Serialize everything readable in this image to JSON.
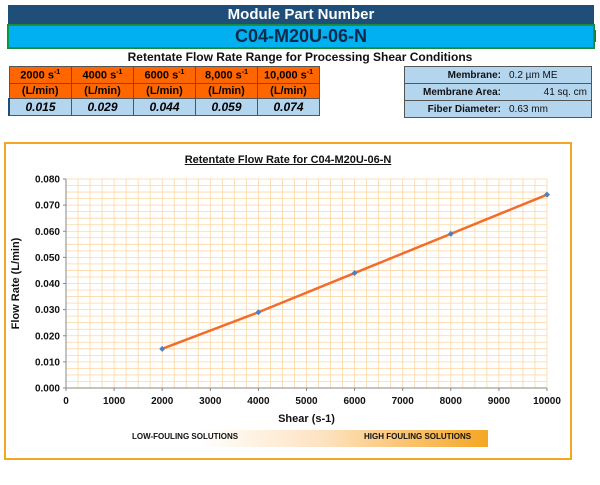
{
  "header": {
    "title": "Module Part Number",
    "part_number": "C04-M20U-06-N"
  },
  "subtitle": "Retentate Flow Rate Range for Processing Shear Conditions",
  "rates": {
    "shears": [
      {
        "value": "2000 s",
        "exp": "-1"
      },
      {
        "value": "4000 s",
        "exp": "-1"
      },
      {
        "value": "6000 s",
        "exp": "-1"
      },
      {
        "value": "8,000 s",
        "exp": "-1"
      },
      {
        "value": "10,000 s",
        "exp": "-1"
      }
    ],
    "unit": "(L/min)",
    "flows": [
      "0.015",
      "0.029",
      "0.044",
      "0.059",
      "0.074"
    ]
  },
  "specs": [
    {
      "label": "Membrane:",
      "value": "0.2 µm ME"
    },
    {
      "label": "Membrane Area:",
      "value": "41 sq. cm"
    },
    {
      "label": "Fiber Diameter:",
      "value": "0.63 mm"
    }
  ],
  "chart_data": {
    "type": "line",
    "title": "Retentate Flow Rate for C04-M20U-06-N",
    "xlabel": "Shear (s-1)",
    "ylabel": "Flow Rate (L/min)",
    "x": [
      2000,
      4000,
      6000,
      8000,
      10000
    ],
    "series": [
      {
        "values": [
          0.015,
          0.029,
          0.044,
          0.059,
          0.074
        ]
      }
    ],
    "xlim": [
      0,
      10000
    ],
    "ylim": [
      0,
      0.08
    ],
    "xticks": [
      "0",
      "1000",
      "2000",
      "3000",
      "4000",
      "5000",
      "6000",
      "7000",
      "8000",
      "9000",
      "10000"
    ],
    "yticks": [
      "0.000",
      "0.010",
      "0.020",
      "0.030",
      "0.040",
      "0.050",
      "0.060",
      "0.070",
      "0.080"
    ],
    "grid": true,
    "line_color": "#f26c2b",
    "marker_color": "#4f81bd",
    "grid_color": "#fbd7a4"
  },
  "fouling": {
    "low": "LOW-FOULING SOLUTIONS",
    "high": "HIGH FOULING SOLUTIONS"
  }
}
